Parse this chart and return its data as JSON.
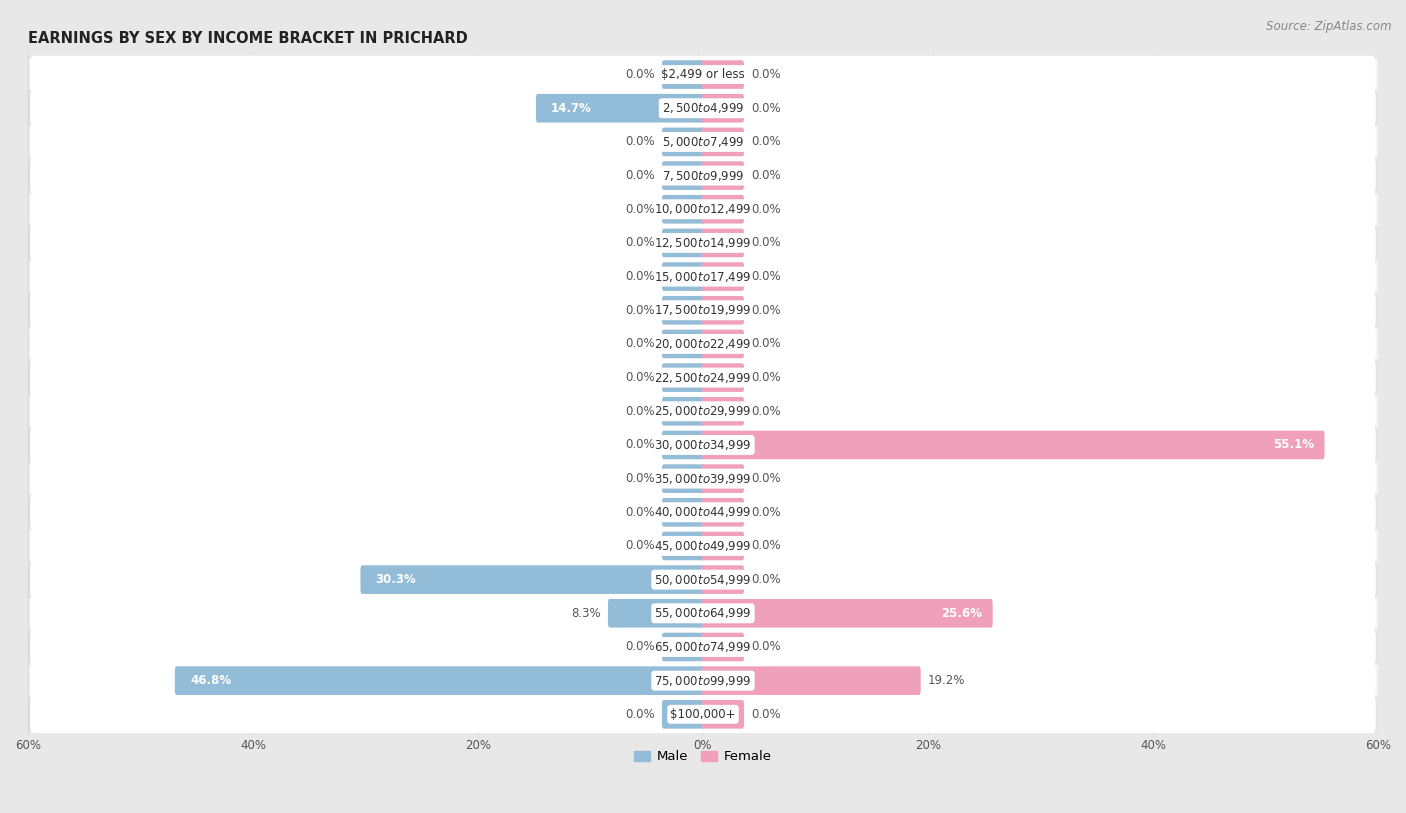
{
  "title": "EARNINGS BY SEX BY INCOME BRACKET IN PRICHARD",
  "source": "Source: ZipAtlas.com",
  "categories": [
    "$2,499 or less",
    "$2,500 to $4,999",
    "$5,000 to $7,499",
    "$7,500 to $9,999",
    "$10,000 to $12,499",
    "$12,500 to $14,999",
    "$15,000 to $17,499",
    "$17,500 to $19,999",
    "$20,000 to $22,499",
    "$22,500 to $24,999",
    "$25,000 to $29,999",
    "$30,000 to $34,999",
    "$35,000 to $39,999",
    "$40,000 to $44,999",
    "$45,000 to $49,999",
    "$50,000 to $54,999",
    "$55,000 to $64,999",
    "$65,000 to $74,999",
    "$75,000 to $99,999",
    "$100,000+"
  ],
  "male_values": [
    0.0,
    14.7,
    0.0,
    0.0,
    0.0,
    0.0,
    0.0,
    0.0,
    0.0,
    0.0,
    0.0,
    0.0,
    0.0,
    0.0,
    0.0,
    30.3,
    8.3,
    0.0,
    46.8,
    0.0
  ],
  "female_values": [
    0.0,
    0.0,
    0.0,
    0.0,
    0.0,
    0.0,
    0.0,
    0.0,
    0.0,
    0.0,
    0.0,
    55.1,
    0.0,
    0.0,
    0.0,
    0.0,
    25.6,
    0.0,
    19.2,
    0.0
  ],
  "male_color": "#92bcd8",
  "female_color": "#f0a0bb",
  "bg_color": "#e8e8e8",
  "row_bg_light": "#f5f5f5",
  "row_bg_dark": "#e4e4e4",
  "row_inner_bg": "#ffffff",
  "xlim": 60.0,
  "label_fontsize": 8.5,
  "title_fontsize": 10.5,
  "source_fontsize": 8.5,
  "tick_fontsize": 8.5,
  "bar_height": 0.55,
  "inner_bar_height": 0.52,
  "stub_size": 3.5
}
